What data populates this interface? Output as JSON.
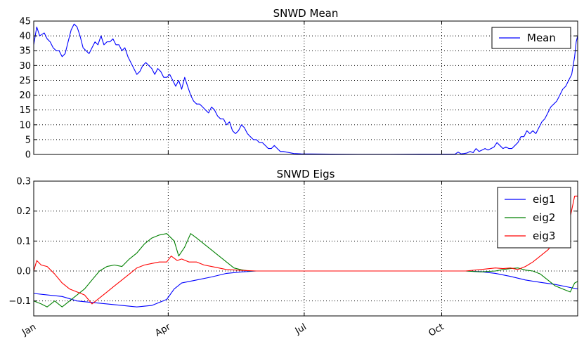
{
  "chart_data": [
    {
      "type": "line",
      "title": "SNWD Mean",
      "xlabel": "",
      "ylabel": "",
      "xlim": [
        1,
        365
      ],
      "ylim": [
        0,
        45
      ],
      "yticks": [
        "0",
        "5",
        "10",
        "15",
        "20",
        "25",
        "30",
        "35",
        "40",
        "45"
      ],
      "grid": true,
      "legend": "top-right",
      "series": [
        {
          "name": "Mean",
          "color": "#0000ff",
          "points": [
            [
              1,
              37
            ],
            [
              3,
              43
            ],
            [
              5,
              40
            ],
            [
              8,
              41
            ],
            [
              10,
              39
            ],
            [
              12,
              38
            ],
            [
              14,
              36
            ],
            [
              16,
              35
            ],
            [
              18,
              35
            ],
            [
              20,
              33
            ],
            [
              22,
              34
            ],
            [
              24,
              38
            ],
            [
              26,
              42
            ],
            [
              28,
              44
            ],
            [
              30,
              43
            ],
            [
              32,
              40
            ],
            [
              34,
              36
            ],
            [
              36,
              35
            ],
            [
              38,
              34
            ],
            [
              40,
              36
            ],
            [
              42,
              38
            ],
            [
              44,
              37
            ],
            [
              46,
              40
            ],
            [
              48,
              37
            ],
            [
              50,
              38
            ],
            [
              52,
              38
            ],
            [
              54,
              39
            ],
            [
              56,
              37
            ],
            [
              58,
              37
            ],
            [
              60,
              35
            ],
            [
              62,
              36
            ],
            [
              64,
              33
            ],
            [
              66,
              31
            ],
            [
              68,
              29
            ],
            [
              70,
              27
            ],
            [
              72,
              28
            ],
            [
              74,
              30
            ],
            [
              76,
              31
            ],
            [
              78,
              30
            ],
            [
              80,
              29
            ],
            [
              82,
              27
            ],
            [
              84,
              29
            ],
            [
              86,
              28
            ],
            [
              88,
              26
            ],
            [
              90,
              26
            ],
            [
              92,
              27
            ],
            [
              94,
              25
            ],
            [
              96,
              23
            ],
            [
              98,
              25
            ],
            [
              100,
              22
            ],
            [
              102,
              26
            ],
            [
              104,
              23
            ],
            [
              106,
              20
            ],
            [
              108,
              18
            ],
            [
              110,
              17
            ],
            [
              112,
              17
            ],
            [
              114,
              16
            ],
            [
              116,
              15
            ],
            [
              118,
              14
            ],
            [
              120,
              16
            ],
            [
              122,
              15
            ],
            [
              124,
              13
            ],
            [
              126,
              12
            ],
            [
              128,
              12
            ],
            [
              130,
              10
            ],
            [
              132,
              11
            ],
            [
              134,
              8
            ],
            [
              136,
              7
            ],
            [
              138,
              8
            ],
            [
              140,
              10
            ],
            [
              142,
              9
            ],
            [
              144,
              7
            ],
            [
              146,
              6
            ],
            [
              148,
              5
            ],
            [
              150,
              5
            ],
            [
              152,
              4
            ],
            [
              154,
              4
            ],
            [
              156,
              3
            ],
            [
              158,
              2
            ],
            [
              160,
              2
            ],
            [
              162,
              3
            ],
            [
              164,
              2
            ],
            [
              166,
              1
            ],
            [
              168,
              1
            ],
            [
              170,
              0.8
            ],
            [
              175,
              0.3
            ],
            [
              180,
              0.2
            ],
            [
              200,
              0.1
            ],
            [
              220,
              0.05
            ],
            [
              240,
              0.05
            ],
            [
              260,
              0.1
            ],
            [
              283,
              0.1
            ],
            [
              285,
              0.8
            ],
            [
              287,
              0.2
            ],
            [
              289,
              0.3
            ],
            [
              291,
              0.5
            ],
            [
              293,
              1
            ],
            [
              295,
              0.6
            ],
            [
              297,
              2
            ],
            [
              299,
              1
            ],
            [
              301,
              1.5
            ],
            [
              303,
              2
            ],
            [
              305,
              1.5
            ],
            [
              307,
              2
            ],
            [
              309,
              2.5
            ],
            [
              311,
              4
            ],
            [
              313,
              3
            ],
            [
              315,
              2
            ],
            [
              317,
              2.5
            ],
            [
              319,
              2
            ],
            [
              321,
              2
            ],
            [
              323,
              3
            ],
            [
              325,
              4
            ],
            [
              327,
              6
            ],
            [
              329,
              6
            ],
            [
              331,
              8
            ],
            [
              333,
              7
            ],
            [
              335,
              8
            ],
            [
              337,
              7
            ],
            [
              339,
              9
            ],
            [
              341,
              11
            ],
            [
              343,
              12
            ],
            [
              345,
              14
            ],
            [
              347,
              16
            ],
            [
              349,
              17
            ],
            [
              351,
              18
            ],
            [
              353,
              20
            ],
            [
              355,
              22
            ],
            [
              357,
              23
            ],
            [
              359,
              25
            ],
            [
              361,
              27
            ],
            [
              362,
              30
            ],
            [
              363,
              33
            ],
            [
              364,
              38
            ],
            [
              365,
              40
            ]
          ]
        }
      ]
    },
    {
      "type": "line",
      "title": "SNWD Eigs",
      "xlabel": "",
      "ylabel": "",
      "xlim": [
        1,
        365
      ],
      "ylim": [
        -0.15,
        0.3
      ],
      "yticks": [
        "−0.1",
        "0.0",
        "0.1",
        "0.2",
        "0.3"
      ],
      "xticks": [
        {
          "value": 1,
          "label": "Jan"
        },
        {
          "value": 91,
          "label": "Apr"
        },
        {
          "value": 182,
          "label": "Jul"
        },
        {
          "value": 274,
          "label": "Oct"
        }
      ],
      "grid": true,
      "legend": "top-right",
      "series": [
        {
          "name": "eig1",
          "color": "#0000ff",
          "points": [
            [
              1,
              -0.075
            ],
            [
              10,
              -0.08
            ],
            [
              20,
              -0.085
            ],
            [
              30,
              -0.1
            ],
            [
              40,
              -0.105
            ],
            [
              50,
              -0.11
            ],
            [
              60,
              -0.115
            ],
            [
              70,
              -0.12
            ],
            [
              80,
              -0.115
            ],
            [
              90,
              -0.095
            ],
            [
              95,
              -0.06
            ],
            [
              100,
              -0.04
            ],
            [
              105,
              -0.035
            ],
            [
              110,
              -0.03
            ],
            [
              120,
              -0.02
            ],
            [
              130,
              -0.008
            ],
            [
              140,
              -0.003
            ],
            [
              150,
              0
            ],
            [
              170,
              0
            ],
            [
              290,
              0
            ],
            [
              300,
              -0.002
            ],
            [
              310,
              -0.008
            ],
            [
              320,
              -0.018
            ],
            [
              330,
              -0.03
            ],
            [
              340,
              -0.038
            ],
            [
              350,
              -0.045
            ],
            [
              360,
              -0.055
            ],
            [
              365,
              -0.06
            ]
          ]
        },
        {
          "name": "eig2",
          "color": "#008000",
          "points": [
            [
              1,
              -0.1
            ],
            [
              6,
              -0.11
            ],
            [
              10,
              -0.12
            ],
            [
              15,
              -0.1
            ],
            [
              20,
              -0.12
            ],
            [
              25,
              -0.1
            ],
            [
              30,
              -0.08
            ],
            [
              35,
              -0.06
            ],
            [
              40,
              -0.03
            ],
            [
              45,
              0
            ],
            [
              50,
              0.015
            ],
            [
              55,
              0.02
            ],
            [
              60,
              0.015
            ],
            [
              65,
              0.04
            ],
            [
              70,
              0.06
            ],
            [
              75,
              0.09
            ],
            [
              80,
              0.11
            ],
            [
              85,
              0.12
            ],
            [
              90,
              0.125
            ],
            [
              95,
              0.1
            ],
            [
              98,
              0.05
            ],
            [
              102,
              0.08
            ],
            [
              106,
              0.125
            ],
            [
              110,
              0.11
            ],
            [
              115,
              0.09
            ],
            [
              120,
              0.07
            ],
            [
              125,
              0.05
            ],
            [
              130,
              0.03
            ],
            [
              135,
              0.01
            ],
            [
              140,
              0.004
            ],
            [
              145,
              0
            ],
            [
              170,
              0
            ],
            [
              290,
              0
            ],
            [
              300,
              -0.003
            ],
            [
              310,
              0
            ],
            [
              315,
              0.005
            ],
            [
              320,
              0.008
            ],
            [
              325,
              0.01
            ],
            [
              330,
              0.003
            ],
            [
              335,
              0
            ],
            [
              340,
              -0.01
            ],
            [
              345,
              -0.03
            ],
            [
              350,
              -0.05
            ],
            [
              355,
              -0.06
            ],
            [
              360,
              -0.07
            ],
            [
              363,
              -0.04
            ],
            [
              365,
              -0.035
            ]
          ]
        },
        {
          "name": "eig3",
          "color": "#ff0000",
          "points": [
            [
              1,
              0
            ],
            [
              3,
              0.035
            ],
            [
              6,
              0.02
            ],
            [
              10,
              0.015
            ],
            [
              15,
              -0.01
            ],
            [
              20,
              -0.04
            ],
            [
              25,
              -0.06
            ],
            [
              30,
              -0.07
            ],
            [
              35,
              -0.08
            ],
            [
              40,
              -0.11
            ],
            [
              45,
              -0.09
            ],
            [
              50,
              -0.07
            ],
            [
              55,
              -0.05
            ],
            [
              60,
              -0.03
            ],
            [
              65,
              -0.01
            ],
            [
              70,
              0.01
            ],
            [
              75,
              0.02
            ],
            [
              80,
              0.025
            ],
            [
              85,
              0.03
            ],
            [
              90,
              0.03
            ],
            [
              93,
              0.05
            ],
            [
              97,
              0.035
            ],
            [
              100,
              0.04
            ],
            [
              105,
              0.03
            ],
            [
              110,
              0.03
            ],
            [
              115,
              0.02
            ],
            [
              120,
              0.015
            ],
            [
              130,
              0.005
            ],
            [
              140,
              0.002
            ],
            [
              150,
              0
            ],
            [
              290,
              0
            ],
            [
              300,
              0.005
            ],
            [
              310,
              0.01
            ],
            [
              315,
              0.008
            ],
            [
              320,
              0.01
            ],
            [
              325,
              0.005
            ],
            [
              330,
              0.015
            ],
            [
              335,
              0.03
            ],
            [
              340,
              0.05
            ],
            [
              345,
              0.07
            ],
            [
              350,
              0.1
            ],
            [
              355,
              0.13
            ],
            [
              360,
              0.18
            ],
            [
              363,
              0.25
            ],
            [
              365,
              0.25
            ]
          ]
        }
      ]
    }
  ]
}
